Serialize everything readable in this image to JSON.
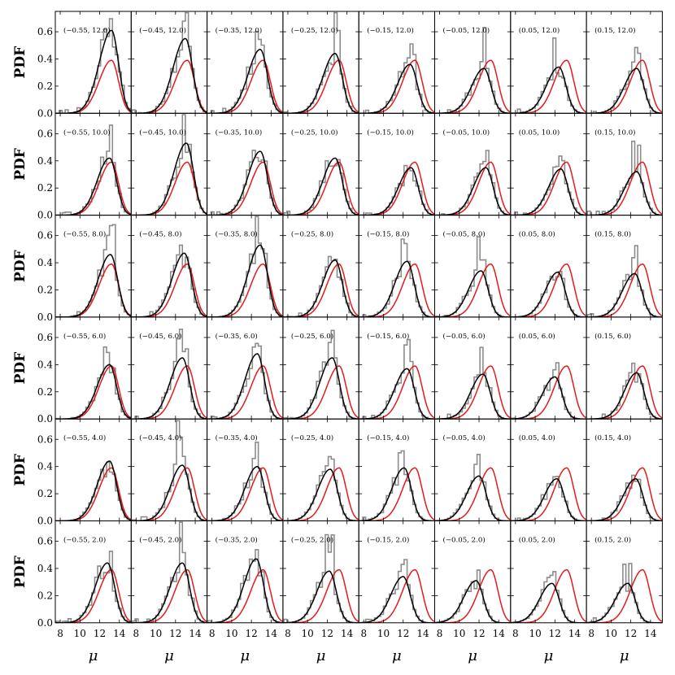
{
  "chart_data": {
    "type": "histogram-grid",
    "rows": 6,
    "cols": 8,
    "ylabel": "PDF",
    "xlabel": "μ",
    "xlim": [
      7.5,
      15.2
    ],
    "ylim": [
      0,
      0.75
    ],
    "xticks": [
      "8",
      "10",
      "12",
      "14"
    ],
    "yticks": [
      "0.0",
      "0.2",
      "0.4",
      "0.6"
    ],
    "colors": {
      "histogram": "#8c8c8c",
      "fit": "#000000",
      "reference": "#e41a1c"
    },
    "col_values": [
      "−0.55",
      "−0.45",
      "−0.35",
      "−0.25",
      "−0.15",
      "−0.05",
      "0.05",
      "0.15"
    ],
    "row_values": [
      "12.0",
      "10.0",
      "8.0",
      "6.0",
      "4.0",
      "2.0"
    ],
    "black_peaks": [
      [
        0.61,
        0.55,
        0.47,
        0.44,
        0.36,
        0.33,
        0.34,
        0.33
      ],
      [
        0.42,
        0.53,
        0.47,
        0.42,
        0.35,
        0.35,
        0.34,
        0.32
      ],
      [
        0.46,
        0.47,
        0.53,
        0.42,
        0.41,
        0.34,
        0.33,
        0.32
      ],
      [
        0.4,
        0.45,
        0.48,
        0.45,
        0.37,
        0.33,
        0.31,
        0.34
      ],
      [
        0.44,
        0.41,
        0.4,
        0.38,
        0.39,
        0.33,
        0.31,
        0.31
      ],
      [
        0.44,
        0.44,
        0.47,
        0.38,
        0.34,
        0.31,
        0.29,
        0.29
      ]
    ],
    "black_modes": [
      [
        13.2,
        13.0,
        12.9,
        12.8,
        12.7,
        12.5,
        12.4,
        12.6
      ],
      [
        13.0,
        13.1,
        12.9,
        12.8,
        12.8,
        12.7,
        12.6,
        12.6
      ],
      [
        13.1,
        12.9,
        12.9,
        12.8,
        12.4,
        12.2,
        12.3,
        12.4
      ],
      [
        13.0,
        12.7,
        12.6,
        12.5,
        12.4,
        12.4,
        12.0,
        12.6
      ],
      [
        13.0,
        12.7,
        12.6,
        12.3,
        12.1,
        12.0,
        12.2,
        12.5
      ],
      [
        12.8,
        12.7,
        12.5,
        12.2,
        12.0,
        11.7,
        11.7,
        11.7
      ]
    ],
    "reference_curve": {
      "mode": 13.2,
      "peak": 0.39
    }
  }
}
